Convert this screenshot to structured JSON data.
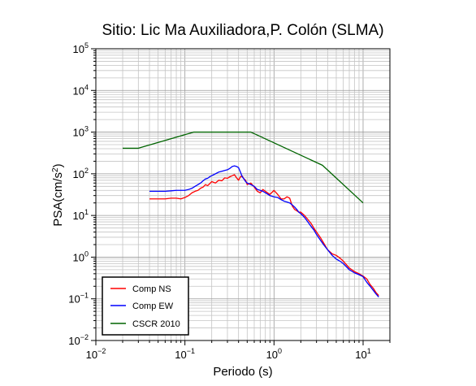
{
  "chart_data": {
    "type": "line",
    "title": "Sitio: Lic Ma Auxiliadora,P. Colón (SLMA)",
    "xlabel": "Periodo (s)",
    "ylabel": "PSA(cm/s",
    "ylabel_sup": "2",
    "ylabel_suffix": ")",
    "xscale": "log",
    "yscale": "log",
    "xlim": [
      0.01,
      20
    ],
    "ylim": [
      0.01,
      100000
    ],
    "grid": true,
    "legend_position": "bottom-left",
    "xticks": [
      {
        "base": "10",
        "exp": "−2"
      },
      {
        "base": "10",
        "exp": "−1"
      },
      {
        "base": "10",
        "exp": "0"
      },
      {
        "base": "10",
        "exp": "1"
      }
    ],
    "xtick_values": [
      0.01,
      0.1,
      1,
      10
    ],
    "yticks": [
      {
        "base": "10",
        "exp": "−2"
      },
      {
        "base": "10",
        "exp": "−1"
      },
      {
        "base": "10",
        "exp": "0"
      },
      {
        "base": "10",
        "exp": "1"
      },
      {
        "base": "10",
        "exp": "2"
      },
      {
        "base": "10",
        "exp": "3"
      },
      {
        "base": "10",
        "exp": "4"
      },
      {
        "base": "10",
        "exp": "5"
      }
    ],
    "ytick_values": [
      0.01,
      0.1,
      1,
      10,
      100,
      1000,
      10000,
      100000
    ],
    "series": [
      {
        "name": "Comp NS",
        "color": "#ff0000",
        "x": [
          0.04,
          0.05,
          0.06,
          0.07,
          0.08,
          0.09,
          0.1,
          0.11,
          0.12,
          0.13,
          0.14,
          0.15,
          0.16,
          0.17,
          0.18,
          0.19,
          0.2,
          0.22,
          0.24,
          0.26,
          0.28,
          0.3,
          0.32,
          0.34,
          0.36,
          0.38,
          0.4,
          0.42,
          0.44,
          0.46,
          0.48,
          0.5,
          0.55,
          0.6,
          0.65,
          0.7,
          0.75,
          0.8,
          0.9,
          1.0,
          1.1,
          1.2,
          1.3,
          1.4,
          1.5,
          1.6,
          1.7,
          1.8,
          1.9,
          2.0,
          2.2,
          2.4,
          2.6,
          2.8,
          3.0,
          3.3,
          3.6,
          4.0,
          4.5,
          5.0,
          5.5,
          6.0,
          7.0,
          8.0,
          9.0,
          10.0,
          11.0,
          12.0,
          13.0,
          14.0,
          15.0
        ],
        "y": [
          25,
          25,
          25,
          26,
          26,
          25,
          27,
          30,
          35,
          38,
          40,
          45,
          48,
          55,
          52,
          58,
          65,
          60,
          70,
          68,
          80,
          78,
          85,
          90,
          95,
          80,
          70,
          85,
          88,
          75,
          70,
          55,
          60,
          48,
          38,
          35,
          42,
          38,
          32,
          40,
          32,
          25,
          25,
          28,
          26,
          17,
          14,
          13,
          12,
          12,
          10,
          8,
          6.5,
          5,
          4,
          3,
          2.2,
          1.5,
          1.2,
          1.1,
          0.95,
          0.8,
          0.55,
          0.45,
          0.4,
          0.35,
          0.3,
          0.22,
          0.18,
          0.14,
          0.12
        ]
      },
      {
        "name": "Comp EW",
        "color": "#0000ff",
        "x": [
          0.04,
          0.05,
          0.06,
          0.07,
          0.08,
          0.09,
          0.1,
          0.11,
          0.12,
          0.13,
          0.14,
          0.15,
          0.16,
          0.17,
          0.18,
          0.19,
          0.2,
          0.22,
          0.24,
          0.26,
          0.28,
          0.3,
          0.32,
          0.34,
          0.36,
          0.38,
          0.4,
          0.42,
          0.44,
          0.46,
          0.48,
          0.5,
          0.55,
          0.6,
          0.65,
          0.7,
          0.75,
          0.8,
          0.9,
          1.0,
          1.1,
          1.2,
          1.3,
          1.4,
          1.5,
          1.6,
          1.7,
          1.8,
          1.9,
          2.0,
          2.2,
          2.4,
          2.6,
          2.8,
          3.0,
          3.3,
          3.6,
          4.0,
          4.5,
          5.0,
          5.5,
          6.0,
          7.0,
          8.0,
          9.0,
          10.0,
          11.0,
          12.0,
          13.0,
          14.0,
          15.0
        ],
        "y": [
          38,
          38,
          38,
          39,
          40,
          40,
          40,
          42,
          45,
          50,
          55,
          60,
          68,
          75,
          78,
          85,
          90,
          100,
          110,
          115,
          120,
          125,
          135,
          150,
          155,
          150,
          140,
          110,
          85,
          75,
          65,
          60,
          55,
          50,
          42,
          40,
          38,
          35,
          30,
          28,
          27,
          24,
          22,
          21,
          20,
          18,
          16,
          14,
          12,
          11,
          9,
          7,
          5.5,
          4.5,
          3.5,
          2.6,
          2.0,
          1.5,
          1.1,
          0.9,
          0.8,
          0.7,
          0.5,
          0.42,
          0.38,
          0.34,
          0.25,
          0.2,
          0.16,
          0.13,
          0.11
        ]
      },
      {
        "name": "CSCR 2010",
        "color": "#006400",
        "x": [
          0.02,
          0.03,
          0.125,
          0.55,
          3.5,
          10.0
        ],
        "y": [
          410,
          410,
          1000,
          1000,
          160,
          20
        ]
      }
    ]
  }
}
